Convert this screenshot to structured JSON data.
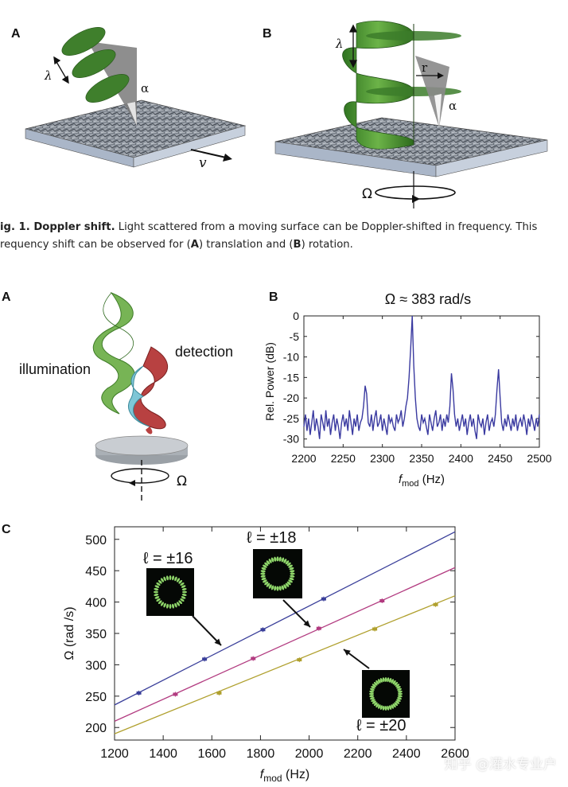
{
  "fig1": {
    "label_a": "A",
    "label_b": "B",
    "lambda_a": "λ",
    "alpha_a": "α",
    "v_label": "v",
    "lambda_b": "λ",
    "r_label": "r",
    "alpha_b": "α",
    "omega_label": "Ω",
    "caption_lead": "ig. 1. Doppler shift.",
    "caption_line1_rest": " Light scattered from a moving surface can be Doppler-shifted in frequency. This",
    "caption_line2_pre": "requency shift can be observed for (",
    "caption_A": "A",
    "caption_mid": ") translation and (",
    "caption_B": "B",
    "caption_end": ") rotation."
  },
  "fig2": {
    "label_a": "A",
    "illumination": "illumination",
    "detection": "detection",
    "omega": "Ω",
    "label_b": "B",
    "label_c": "C"
  },
  "colors": {
    "green_beam": "#3f8a2a",
    "spectrum_line": "#3a3aa0",
    "series_16": "#3a3f9a",
    "series_18": "#b23b80",
    "series_20": "#b0a02e"
  },
  "chart_data": [
    {
      "type": "line",
      "title": "Ω ≈ 383 rad/s",
      "xlabel_main": "f",
      "xlabel_sub": "mod",
      "xlabel_unit": " (Hz)",
      "ylabel": "Rel. Power (dB)",
      "xlim": [
        2200,
        2500
      ],
      "ylim": [
        -32,
        0
      ],
      "xticks": [
        "2200",
        "2250",
        "2300",
        "2350",
        "2400",
        "2450",
        "2500"
      ],
      "yticks": [
        "0",
        "-5",
        "-10",
        "-15",
        "-20",
        "-25",
        "-30"
      ],
      "grid": false,
      "series": [
        {
          "x": [
            2200,
            2202,
            2204,
            2206,
            2208,
            2210,
            2212,
            2214,
            2216,
            2218,
            2220,
            2222,
            2224,
            2226,
            2228,
            2230,
            2232,
            2234,
            2236,
            2238,
            2240,
            2242,
            2244,
            2246,
            2248,
            2250,
            2252,
            2254,
            2256,
            2258,
            2260,
            2262,
            2264,
            2266,
            2268,
            2270,
            2272,
            2274,
            2276,
            2278,
            2280,
            2282,
            2284,
            2286,
            2288,
            2290,
            2292,
            2294,
            2296,
            2298,
            2300,
            2302,
            2304,
            2306,
            2308,
            2310,
            2312,
            2314,
            2316,
            2318,
            2320,
            2322,
            2324,
            2326,
            2328,
            2330,
            2332,
            2334,
            2336,
            2338,
            2340,
            2342,
            2344,
            2346,
            2348,
            2350,
            2352,
            2354,
            2356,
            2358,
            2360,
            2362,
            2364,
            2366,
            2368,
            2370,
            2372,
            2374,
            2376,
            2378,
            2380,
            2382,
            2384,
            2386,
            2388,
            2390,
            2392,
            2394,
            2396,
            2398,
            2400,
            2402,
            2404,
            2406,
            2408,
            2410,
            2412,
            2414,
            2416,
            2418,
            2420,
            2422,
            2424,
            2426,
            2428,
            2430,
            2432,
            2434,
            2436,
            2438,
            2440,
            2442,
            2444,
            2446,
            2448,
            2450,
            2452,
            2454,
            2456,
            2458,
            2460,
            2462,
            2464,
            2466,
            2468,
            2470,
            2472,
            2474,
            2476,
            2478,
            2480,
            2482,
            2484,
            2486,
            2488,
            2490,
            2492,
            2494,
            2496,
            2498,
            2500
          ],
          "y": [
            -27,
            -24,
            -28,
            -25,
            -29,
            -26,
            -23,
            -28,
            -25,
            -27,
            -30,
            -24,
            -26,
            -28,
            -23,
            -27,
            -25,
            -29,
            -26,
            -24,
            -28,
            -25,
            -27,
            -30,
            -26,
            -24,
            -27,
            -25,
            -28,
            -23,
            -26,
            -29,
            -25,
            -27,
            -24,
            -28,
            -26,
            -25,
            -22,
            -17,
            -19,
            -26,
            -27,
            -24,
            -28,
            -25,
            -23,
            -27,
            -26,
            -24,
            -28,
            -25,
            -27,
            -29,
            -24,
            -26,
            -25,
            -27,
            -28,
            -24,
            -26,
            -25,
            -23,
            -27,
            -25,
            -22,
            -20,
            -15,
            -8,
            0,
            -12,
            -20,
            -25,
            -27,
            -28,
            -24,
            -26,
            -25,
            -27,
            -29,
            -24,
            -26,
            -28,
            -25,
            -23,
            -27,
            -26,
            -24,
            -28,
            -25,
            -27,
            -24,
            -26,
            -22,
            -14,
            -18,
            -24,
            -27,
            -25,
            -28,
            -26,
            -24,
            -27,
            -25,
            -29,
            -26,
            -24,
            -27,
            -25,
            -28,
            -30,
            -24,
            -26,
            -27,
            -25,
            -29,
            -26,
            -24,
            -28,
            -26,
            -25,
            -27,
            -24,
            -18,
            -13,
            -20,
            -26,
            -28,
            -25,
            -27,
            -24,
            -26,
            -28,
            -25,
            -27,
            -24,
            -28,
            -26,
            -25,
            -27,
            -24,
            -26,
            -29,
            -25,
            -27,
            -24,
            -26,
            -28,
            -25,
            -27,
            -24
          ]
        }
      ]
    },
    {
      "type": "scatter",
      "xlabel_main": "f",
      "xlabel_sub": "mod",
      "xlabel_unit": " (Hz)",
      "ylabel": "Ω (rad /s)",
      "xlim": [
        1200,
        2600
      ],
      "ylim": [
        180,
        520
      ],
      "xticks": [
        1200,
        1400,
        1600,
        1800,
        2000,
        2200,
        2400,
        2600
      ],
      "yticks": [
        200,
        250,
        300,
        350,
        400,
        450,
        500
      ],
      "grid": false,
      "series": [
        {
          "name": "ℓ = ±16",
          "points": [
            [
              1300,
              255
            ],
            [
              1570,
              309
            ],
            [
              1810,
              356
            ],
            [
              2060,
              405
            ]
          ],
          "fit": [
            [
              1200,
              236
            ],
            [
              2600,
              512
            ]
          ]
        },
        {
          "name": "ℓ = ±18",
          "points": [
            [
              1450,
              253
            ],
            [
              1770,
              310
            ],
            [
              2040,
              358
            ],
            [
              2300,
              402
            ]
          ],
          "fit": [
            [
              1200,
              210
            ],
            [
              2600,
              455
            ]
          ]
        },
        {
          "name": "ℓ = ±20",
          "points": [
            [
              1630,
              255
            ],
            [
              1960,
              308
            ],
            [
              2270,
              357
            ],
            [
              2520,
              396
            ]
          ],
          "fit": [
            [
              1200,
              190
            ],
            [
              2600,
              410
            ]
          ]
        }
      ]
    }
  ],
  "watermark": "知乎 @灌水专业户"
}
